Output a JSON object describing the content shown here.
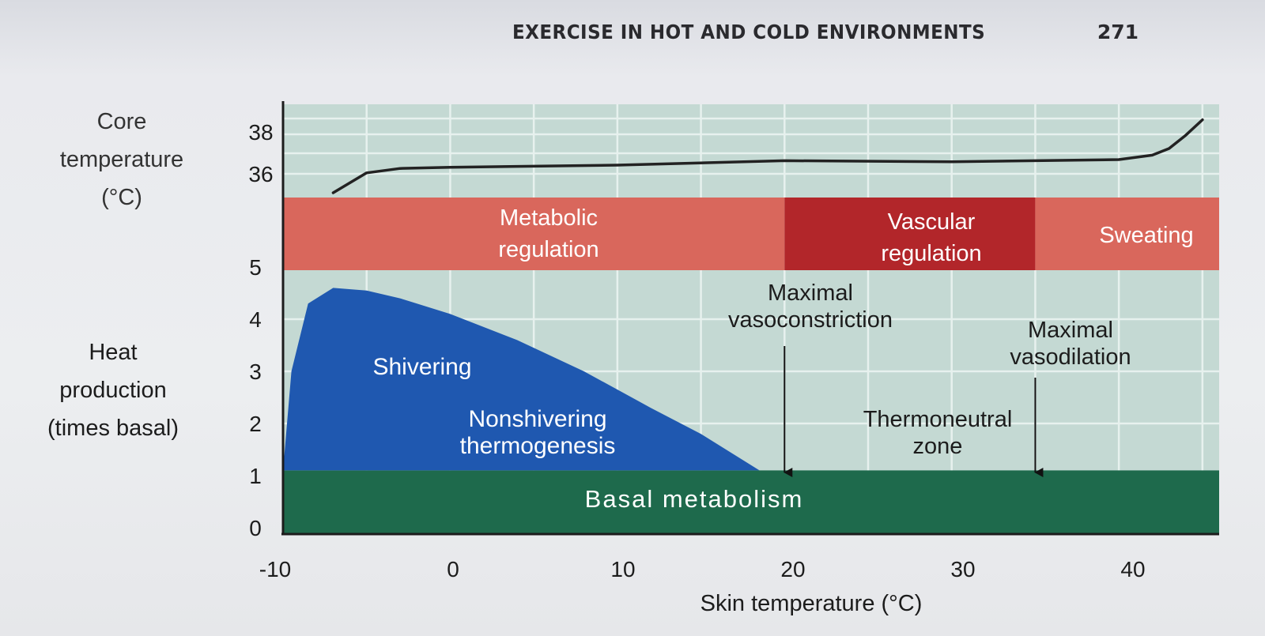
{
  "page_header": {
    "title": "EXERCISE IN HOT AND COLD ENVIRONMENTS",
    "page_number": "271"
  },
  "colors": {
    "panel_bg": "#c4d9d3",
    "grid": "#eef6f3",
    "regulation_band": "#d9675c",
    "vascular_band": "#b2262a",
    "shivering": "#1f58b0",
    "basal": "#1e6a4c",
    "curve": "#222222"
  },
  "chart_data": {
    "type": "area",
    "xlabel": "Skin temperature (°C)",
    "x_ticks": [
      "-10",
      "0",
      "10",
      "20",
      "30",
      "40"
    ],
    "xlim": [
      -10,
      46
    ],
    "core_temperature": {
      "ylabel": [
        "Core",
        "temperature",
        "(°C)"
      ],
      "y_ticks": [
        "38",
        "36"
      ],
      "series": {
        "x": [
          -7,
          -5,
          -3,
          0,
          10,
          20,
          30,
          40,
          42,
          43,
          44,
          45
        ],
        "y": [
          35.0,
          35.9,
          36.1,
          36.15,
          36.25,
          36.45,
          36.4,
          36.5,
          36.7,
          37.0,
          37.6,
          38.3
        ]
      }
    },
    "regulation_bands": [
      {
        "label": [
          "Metabolic",
          "regulation"
        ],
        "x_range": [
          -10,
          20
        ]
      },
      {
        "label": [
          "Vascular",
          "regulation"
        ],
        "x_range": [
          20,
          35
        ]
      },
      {
        "label": [
          "Sweating"
        ],
        "x_range": [
          35,
          46
        ]
      }
    ],
    "heat_production": {
      "ylabel": [
        "Heat",
        "production",
        "(times basal)"
      ],
      "y_ticks": [
        "0",
        "1",
        "2",
        "3",
        "4",
        "5"
      ],
      "ylim": [
        0,
        5
      ],
      "shivering_curve": {
        "x": [
          -10,
          -9.5,
          -8.5,
          -7,
          -5,
          -3,
          0,
          4,
          8,
          12,
          15,
          17,
          18.5
        ],
        "y": [
          1.1,
          3.0,
          4.3,
          4.6,
          4.55,
          4.4,
          4.1,
          3.6,
          3.0,
          2.3,
          1.8,
          1.4,
          1.1
        ]
      },
      "basal_level": 1.1,
      "regions": {
        "shivering": "Shivering",
        "nonshivering": [
          "Nonshivering",
          "thermogenesis"
        ],
        "basal": "Basal metabolism",
        "thermoneutral": [
          "Thermoneutral",
          "zone"
        ]
      }
    },
    "annotations": [
      {
        "label": [
          "Maximal",
          "vasoconstriction"
        ],
        "x": 20
      },
      {
        "label": [
          "Maximal",
          "vasodilation"
        ],
        "x": 35
      }
    ]
  }
}
